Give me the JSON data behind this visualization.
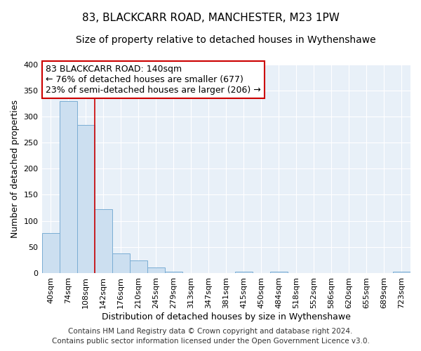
{
  "title": "83, BLACKCARR ROAD, MANCHESTER, M23 1PW",
  "subtitle": "Size of property relative to detached houses in Wythenshawe",
  "xlabel": "Distribution of detached houses by size in Wythenshawe",
  "ylabel": "Number of detached properties",
  "bin_labels": [
    "40sqm",
    "74sqm",
    "108sqm",
    "142sqm",
    "176sqm",
    "210sqm",
    "245sqm",
    "279sqm",
    "313sqm",
    "347sqm",
    "381sqm",
    "415sqm",
    "450sqm",
    "484sqm",
    "518sqm",
    "552sqm",
    "586sqm",
    "620sqm",
    "655sqm",
    "689sqm",
    "723sqm"
  ],
  "bar_values": [
    77,
    330,
    284,
    122,
    37,
    24,
    11,
    3,
    0,
    0,
    0,
    2,
    0,
    2,
    0,
    0,
    0,
    0,
    0,
    0,
    2
  ],
  "bar_color": "#ccdff0",
  "bar_edge_color": "#7aadd4",
  "ylim": [
    0,
    400
  ],
  "yticks": [
    0,
    50,
    100,
    150,
    200,
    250,
    300,
    350,
    400
  ],
  "property_line_x": 2.5,
  "property_line_color": "#cc0000",
  "annotation_line1": "83 BLACKCARR ROAD: 140sqm",
  "annotation_line2": "← 76% of detached houses are smaller (677)",
  "annotation_line3": "23% of semi-detached houses are larger (206) →",
  "annotation_box_color": "#ffffff",
  "annotation_box_edge_color": "#cc0000",
  "footer_line1": "Contains HM Land Registry data © Crown copyright and database right 2024.",
  "footer_line2": "Contains public sector information licensed under the Open Government Licence v3.0.",
  "figure_bg_color": "#ffffff",
  "axes_bg_color": "#e8f0f8",
  "grid_color": "#ffffff",
  "title_fontsize": 11,
  "subtitle_fontsize": 10,
  "axis_label_fontsize": 9,
  "tick_fontsize": 8,
  "footer_fontsize": 7.5,
  "annotation_fontsize": 9
}
